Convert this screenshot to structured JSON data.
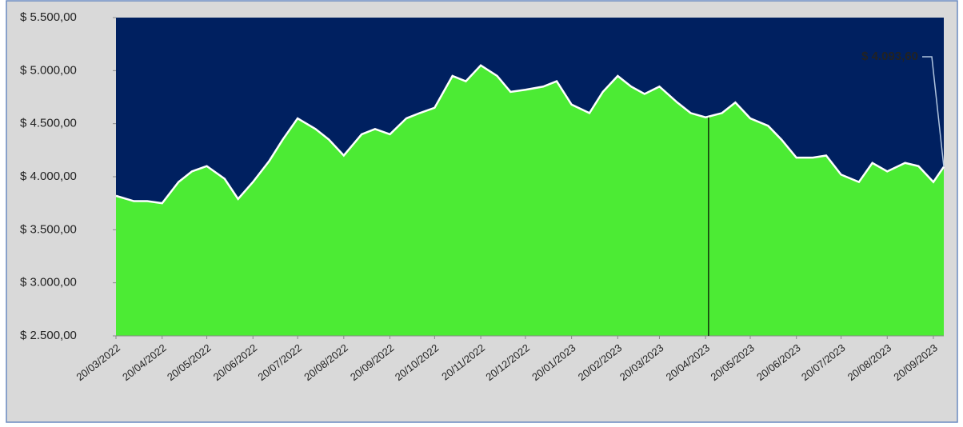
{
  "chart_data": {
    "type": "area",
    "x": [
      "20/03/2022",
      "01/04/2022",
      "10/04/2022",
      "20/04/2022",
      "01/05/2022",
      "10/05/2022",
      "20/05/2022",
      "01/06/2022",
      "10/06/2022",
      "20/06/2022",
      "01/07/2022",
      "10/07/2022",
      "20/07/2022",
      "01/08/2022",
      "10/08/2022",
      "20/08/2022",
      "01/09/2022",
      "10/09/2022",
      "20/09/2022",
      "01/10/2022",
      "10/10/2022",
      "20/10/2022",
      "01/11/2022",
      "10/11/2022",
      "20/11/2022",
      "01/12/2022",
      "10/12/2022",
      "20/12/2022",
      "01/01/2023",
      "10/01/2023",
      "20/01/2023",
      "01/02/2023",
      "10/02/2023",
      "20/02/2023",
      "01/03/2023",
      "10/03/2023",
      "20/03/2023",
      "01/04/2023",
      "10/04/2023",
      "20/04/2023",
      "01/05/2023",
      "10/05/2023",
      "20/05/2023",
      "01/06/2023",
      "10/06/2023",
      "20/06/2023",
      "01/07/2023",
      "10/07/2023",
      "20/07/2023",
      "01/08/2023",
      "10/08/2023",
      "20/08/2023",
      "01/09/2023",
      "10/09/2023",
      "20/09/2023",
      "27/09/2023"
    ],
    "values": [
      3820,
      3770,
      3770,
      3750,
      3950,
      4050,
      4100,
      3980,
      3790,
      3950,
      4150,
      4350,
      4550,
      4450,
      4350,
      4200,
      4400,
      4450,
      4400,
      4550,
      4600,
      4650,
      4950,
      4900,
      5050,
      4950,
      4800,
      4820,
      4850,
      4900,
      4680,
      4600,
      4800,
      4950,
      4850,
      4780,
      4850,
      4700,
      4600,
      4560,
      4600,
      4700,
      4550,
      4480,
      4350,
      4180,
      4180,
      4200,
      4020,
      3950,
      4130,
      4050,
      4130,
      4100,
      3950,
      4093.6
    ],
    "color": "#4ceb34",
    "line_color": "#ffffff",
    "background": "#002060",
    "xlim": [
      "20/03/2022",
      "27/09/2023"
    ],
    "xticks": [
      "20/03/2022",
      "20/04/2022",
      "20/05/2022",
      "20/06/2022",
      "20/07/2022",
      "20/08/2022",
      "20/09/2022",
      "20/10/2022",
      "20/11/2022",
      "20/12/2022",
      "20/01/2023",
      "20/02/2023",
      "20/03/2023",
      "20/04/2023",
      "20/05/2023",
      "20/06/2023",
      "20/07/2023",
      "20/08/2023",
      "20/09/2023"
    ],
    "ylim": [
      2500,
      5500
    ],
    "yticks": [
      {
        "value": 2500,
        "label": "$ 2.500,00"
      },
      {
        "value": 3000,
        "label": "$ 3.000,00"
      },
      {
        "value": 3500,
        "label": "$ 3.500,00"
      },
      {
        "value": 4000,
        "label": "$ 4.000,00"
      },
      {
        "value": 4500,
        "label": "$ 4.500,00"
      },
      {
        "value": 5000,
        "label": "$ 5.000,00"
      },
      {
        "value": 5500,
        "label": "$ 5.500,00"
      }
    ],
    "reference_line_x": "22/04/2023",
    "annotation": {
      "x": "27/09/2023",
      "value": 4093.6,
      "label": "$ 4.093,60",
      "color": "#e00000"
    }
  }
}
